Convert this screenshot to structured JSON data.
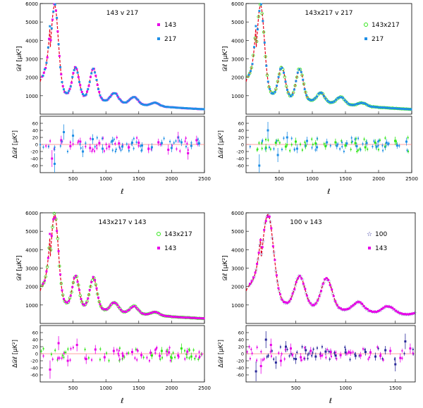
{
  "colors": {
    "model": "#e8001c",
    "magenta": "#e800e8",
    "blue": "#1f8fe6",
    "green": "#33e61a",
    "navy": "#2a2a9a",
    "axis": "#000000",
    "zero_line": "#ff8080"
  },
  "chart_data": [
    {
      "type": "scatter",
      "title": "143 v 217",
      "xlabel": "ℓ",
      "ylabel_top": "𝒟ℓ [μK²]",
      "ylabel_bottom": "Δ𝒟ℓ [μK²]",
      "xlim": [
        0,
        2500
      ],
      "ylim_top": [
        0,
        6000
      ],
      "ylim_bottom": [
        -80,
        80
      ],
      "xticks": [
        500,
        1000,
        1500,
        2000,
        2500
      ],
      "yticks_top": [
        1000,
        2000,
        3000,
        4000,
        5000,
        6000
      ],
      "yticks_bottom": [
        -60,
        -40,
        -20,
        0,
        20,
        40,
        60
      ],
      "legend_position": "top-right",
      "series": [
        {
          "name": "143",
          "color": "magenta",
          "marker": "square"
        },
        {
          "name": "217",
          "color": "blue",
          "marker": "square"
        }
      ],
      "residual_series": [
        {
          "name": "143",
          "color": "magenta",
          "values": [
            [
              180,
              -40
            ],
            [
              320,
              12
            ],
            [
              460,
              -5
            ],
            [
              610,
              8
            ],
            [
              760,
              -10
            ],
            [
              900,
              4
            ],
            [
              1050,
              -6
            ],
            [
              1200,
              3
            ],
            [
              1350,
              -8
            ],
            [
              1500,
              5
            ],
            [
              1650,
              -12
            ],
            [
              1800,
              6
            ],
            [
              1950,
              -15
            ],
            [
              2100,
              20
            ],
            [
              2250,
              -25
            ],
            [
              2380,
              12
            ]
          ]
        },
        {
          "name": "217",
          "color": "blue",
          "values": [
            [
              220,
              -55
            ],
            [
              360,
              35
            ],
            [
              500,
              25
            ],
            [
              650,
              -20
            ],
            [
              800,
              15
            ],
            [
              950,
              -12
            ],
            [
              1100,
              10
            ],
            [
              1250,
              -6
            ],
            [
              1400,
              5
            ],
            [
              1550,
              -3
            ],
            [
              1700,
              -8
            ],
            [
              1850,
              4
            ],
            [
              2000,
              -10
            ],
            [
              2150,
              6
            ],
            [
              2300,
              -4
            ],
            [
              2420,
              3
            ]
          ]
        }
      ]
    },
    {
      "type": "scatter",
      "title": "143x217 v 217",
      "xlabel": "ℓ",
      "ylabel_top": "𝒟ℓ [μK²]",
      "ylabel_bottom": "Δ𝒟ℓ [μK²]",
      "xlim": [
        0,
        2500
      ],
      "ylim_top": [
        0,
        6000
      ],
      "ylim_bottom": [
        -80,
        80
      ],
      "xticks": [
        500,
        1000,
        1500,
        2000,
        2500
      ],
      "yticks_top": [
        1000,
        2000,
        3000,
        4000,
        5000,
        6000
      ],
      "yticks_bottom": [
        -60,
        -40,
        -20,
        0,
        20,
        40,
        60
      ],
      "legend_position": "top-right",
      "series": [
        {
          "name": "143x217",
          "color": "green",
          "marker": "open-circle"
        },
        {
          "name": "217",
          "color": "blue",
          "marker": "square"
        }
      ],
      "residual_series": [
        {
          "name": "143x217",
          "color": "green",
          "values": [
            [
              300,
              -10
            ],
            [
              450,
              5
            ],
            [
              600,
              -6
            ],
            [
              750,
              8
            ],
            [
              900,
              -4
            ],
            [
              1050,
              3
            ],
            [
              1200,
              -5
            ],
            [
              1350,
              6
            ],
            [
              1500,
              -3
            ],
            [
              1650,
              4
            ],
            [
              1800,
              -8
            ],
            [
              1950,
              5
            ],
            [
              2100,
              -6
            ],
            [
              2250,
              10
            ]
          ]
        },
        {
          "name": "217",
          "color": "blue",
          "values": [
            [
              200,
              -60
            ],
            [
              330,
              40
            ],
            [
              480,
              -30
            ],
            [
              620,
              20
            ],
            [
              770,
              -12
            ],
            [
              920,
              10
            ],
            [
              1070,
              -8
            ],
            [
              1220,
              6
            ],
            [
              1370,
              -4
            ],
            [
              1520,
              3
            ],
            [
              1670,
              -5
            ],
            [
              1820,
              4
            ],
            [
              1970,
              -6
            ],
            [
              2120,
              5
            ],
            [
              2280,
              -3
            ],
            [
              2420,
              8
            ]
          ]
        }
      ]
    },
    {
      "type": "scatter",
      "title": "143x217 v 143",
      "xlabel": "ℓ",
      "ylabel_top": "𝒟ℓ [μK²]",
      "ylabel_bottom": "Δ𝒟ℓ [μK²]",
      "xlim": [
        0,
        2500
      ],
      "ylim_top": [
        0,
        6000
      ],
      "ylim_bottom": [
        -80,
        80
      ],
      "xticks": [
        500,
        1000,
        1500,
        2000,
        2500
      ],
      "yticks_top": [
        1000,
        2000,
        3000,
        4000,
        5000,
        6000
      ],
      "yticks_bottom": [
        -60,
        -40,
        -20,
        0,
        20,
        40,
        60
      ],
      "legend_position": "top-right",
      "series": [
        {
          "name": "143x217",
          "color": "green",
          "marker": "open-circle"
        },
        {
          "name": "143",
          "color": "magenta",
          "marker": "square"
        }
      ],
      "residual_series": [
        {
          "name": "143x217",
          "color": "green",
          "values": [
            [
              1700,
              -5
            ],
            [
              1850,
              8
            ],
            [
              2000,
              -12
            ],
            [
              2150,
              15
            ],
            [
              2300,
              -8
            ]
          ]
        },
        {
          "name": "143",
          "color": "magenta",
          "values": [
            [
              150,
              -45
            ],
            [
              280,
              30
            ],
            [
              420,
              -20
            ],
            [
              560,
              25
            ],
            [
              700,
              -15
            ],
            [
              840,
              12
            ],
            [
              980,
              -10
            ],
            [
              1120,
              8
            ],
            [
              1260,
              -6
            ],
            [
              1400,
              5
            ],
            [
              1540,
              -4
            ],
            [
              1680,
              3
            ],
            [
              1820,
              -6
            ],
            [
              1960,
              4
            ],
            [
              2100,
              -5
            ],
            [
              2240,
              6
            ]
          ]
        }
      ]
    },
    {
      "type": "scatter",
      "title": "100 v 143",
      "xlabel": "ℓ",
      "ylabel_top": "𝒟ℓ [μK²]",
      "ylabel_bottom": "Δ𝒟ℓ [μK²]",
      "xlim": [
        0,
        1700
      ],
      "ylim_top": [
        0,
        6000
      ],
      "ylim_bottom": [
        -80,
        80
      ],
      "xticks": [
        500,
        1000,
        1500
      ],
      "yticks_top": [
        1000,
        2000,
        3000,
        4000,
        5000,
        6000
      ],
      "yticks_bottom": [
        -60,
        -40,
        -20,
        0,
        20,
        40,
        60
      ],
      "legend_position": "top-right",
      "series": [
        {
          "name": "100",
          "color": "navy",
          "marker": "star"
        },
        {
          "name": "143",
          "color": "magenta",
          "marker": "square"
        }
      ],
      "residual_series": [
        {
          "name": "100",
          "color": "navy",
          "values": [
            [
              100,
              -50
            ],
            [
              200,
              40
            ],
            [
              300,
              -25
            ],
            [
              400,
              20
            ],
            [
              500,
              -15
            ],
            [
              600,
              10
            ],
            [
              700,
              -8
            ],
            [
              800,
              6
            ],
            [
              900,
              -5
            ],
            [
              1000,
              4
            ],
            [
              1100,
              -6
            ],
            [
              1200,
              5
            ],
            [
              1300,
              -8
            ],
            [
              1400,
              10
            ],
            [
              1500,
              -30
            ],
            [
              1600,
              35
            ]
          ]
        },
        {
          "name": "143",
          "color": "magenta",
          "values": [
            [
              150,
              -35
            ],
            [
              250,
              25
            ],
            [
              350,
              -20
            ],
            [
              450,
              15
            ],
            [
              550,
              -10
            ],
            [
              650,
              8
            ],
            [
              750,
              -6
            ],
            [
              850,
              5
            ],
            [
              950,
              -4
            ],
            [
              1050,
              3
            ],
            [
              1150,
              -5
            ],
            [
              1250,
              4
            ],
            [
              1350,
              -6
            ],
            [
              1450,
              8
            ],
            [
              1550,
              -12
            ],
            [
              1650,
              15
            ]
          ]
        }
      ]
    }
  ]
}
